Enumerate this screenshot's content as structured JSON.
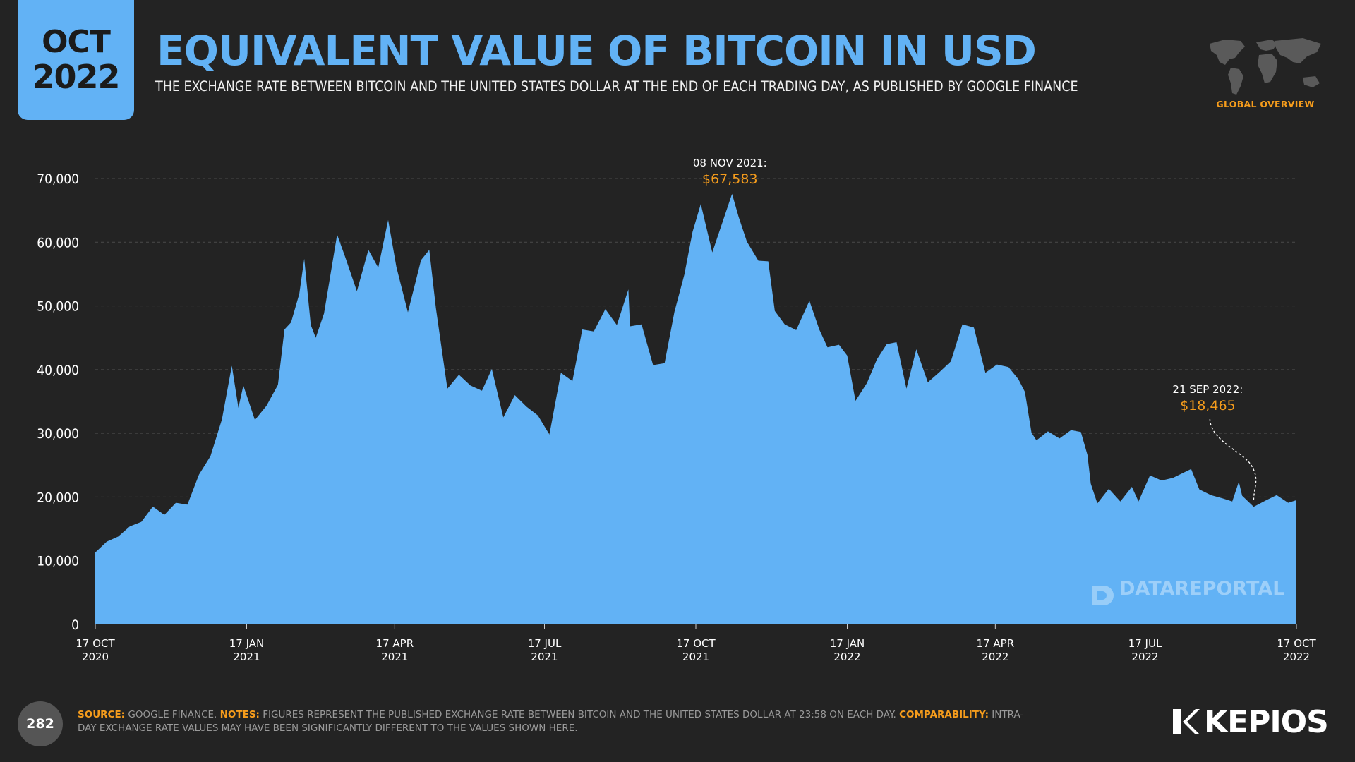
{
  "badge": {
    "month": "OCT",
    "year": "2022"
  },
  "header": {
    "title": "EQUIVALENT VALUE OF BITCOIN IN USD",
    "subtitle": "THE EXCHANGE RATE BETWEEN BITCOIN AND THE UNITED STATES DOLLAR AT THE END OF EACH TRADING DAY, AS PUBLISHED BY GOOGLE FINANCE"
  },
  "globe": {
    "icon": "world-map-icon",
    "label": "GLOBAL OVERVIEW"
  },
  "colors": {
    "area": "#62b2f5",
    "accent": "#f59c1c",
    "background": "#232323"
  },
  "chart_data": {
    "type": "area",
    "y_ticks": [
      "0",
      "10,000",
      "20,000",
      "30,000",
      "40,000",
      "50,000",
      "60,000",
      "70,000"
    ],
    "ylim": [
      0,
      70000
    ],
    "x_ticks": [
      {
        "date": "2020-10-17",
        "line1": "17 OCT",
        "line2": "2020"
      },
      {
        "date": "2021-01-17",
        "line1": "17 JAN",
        "line2": "2021"
      },
      {
        "date": "2021-04-17",
        "line1": "17 APR",
        "line2": "2021"
      },
      {
        "date": "2021-07-17",
        "line1": "17 JUL",
        "line2": "2021"
      },
      {
        "date": "2021-10-17",
        "line1": "17 OCT",
        "line2": "2021"
      },
      {
        "date": "2022-01-17",
        "line1": "17 JAN",
        "line2": "2022"
      },
      {
        "date": "2022-04-17",
        "line1": "17 APR",
        "line2": "2022"
      },
      {
        "date": "2022-07-17",
        "line1": "17 JUL",
        "line2": "2022"
      },
      {
        "date": "2022-10-17",
        "line1": "17 OCT",
        "line2": "2022"
      }
    ],
    "xlim": [
      "2020-10-17",
      "2022-10-17"
    ],
    "grid": true,
    "series": [
      {
        "points": [
          [
            "2020-10-17",
            11300
          ],
          [
            "2020-10-24",
            13000
          ],
          [
            "2020-10-31",
            13800
          ],
          [
            "2020-11-07",
            15400
          ],
          [
            "2020-11-14",
            16100
          ],
          [
            "2020-11-21",
            18500
          ],
          [
            "2020-11-28",
            17200
          ],
          [
            "2020-12-05",
            19100
          ],
          [
            "2020-12-12",
            18800
          ],
          [
            "2020-12-19",
            23500
          ],
          [
            "2020-12-26",
            26400
          ],
          [
            "2021-01-02",
            32200
          ],
          [
            "2021-01-08",
            40600
          ],
          [
            "2021-01-12",
            34000
          ],
          [
            "2021-01-15",
            37500
          ],
          [
            "2021-01-22",
            32100
          ],
          [
            "2021-01-29",
            34300
          ],
          [
            "2021-02-05",
            37600
          ],
          [
            "2021-02-09",
            46300
          ],
          [
            "2021-02-13",
            47400
          ],
          [
            "2021-02-18",
            51900
          ],
          [
            "2021-02-21",
            57400
          ],
          [
            "2021-02-25",
            47000
          ],
          [
            "2021-02-28",
            45000
          ],
          [
            "2021-03-05",
            48800
          ],
          [
            "2021-03-13",
            61200
          ],
          [
            "2021-03-18",
            57600
          ],
          [
            "2021-03-25",
            52300
          ],
          [
            "2021-04-01",
            58800
          ],
          [
            "2021-04-07",
            56000
          ],
          [
            "2021-04-13",
            63500
          ],
          [
            "2021-04-18",
            56100
          ],
          [
            "2021-04-25",
            49000
          ],
          [
            "2021-05-03",
            57200
          ],
          [
            "2021-05-08",
            58800
          ],
          [
            "2021-05-12",
            49700
          ],
          [
            "2021-05-19",
            37000
          ],
          [
            "2021-05-26",
            39200
          ],
          [
            "2021-06-02",
            37500
          ],
          [
            "2021-06-09",
            36700
          ],
          [
            "2021-06-15",
            40100
          ],
          [
            "2021-06-22",
            32500
          ],
          [
            "2021-06-29",
            36000
          ],
          [
            "2021-07-06",
            34200
          ],
          [
            "2021-07-13",
            32800
          ],
          [
            "2021-07-20",
            29800
          ],
          [
            "2021-07-27",
            39500
          ],
          [
            "2021-08-03",
            38200
          ],
          [
            "2021-08-09",
            46300
          ],
          [
            "2021-08-16",
            46000
          ],
          [
            "2021-08-23",
            49500
          ],
          [
            "2021-08-30",
            47000
          ],
          [
            "2021-09-06",
            52600
          ],
          [
            "2021-09-07",
            46800
          ],
          [
            "2021-09-14",
            47100
          ],
          [
            "2021-09-21",
            40700
          ],
          [
            "2021-09-28",
            41000
          ],
          [
            "2021-10-04",
            49100
          ],
          [
            "2021-10-10",
            54900
          ],
          [
            "2021-10-15",
            61600
          ],
          [
            "2021-10-20",
            66000
          ],
          [
            "2021-10-27",
            58400
          ],
          [
            "2021-11-02",
            63000
          ],
          [
            "2021-11-08",
            67583
          ],
          [
            "2021-11-12",
            64000
          ],
          [
            "2021-11-17",
            60100
          ],
          [
            "2021-11-24",
            57100
          ],
          [
            "2021-11-30",
            57000
          ],
          [
            "2021-12-04",
            49200
          ],
          [
            "2021-12-10",
            47100
          ],
          [
            "2021-12-17",
            46200
          ],
          [
            "2021-12-25",
            50800
          ],
          [
            "2021-12-31",
            46300
          ],
          [
            "2022-01-05",
            43500
          ],
          [
            "2022-01-12",
            43900
          ],
          [
            "2022-01-17",
            42200
          ],
          [
            "2022-01-22",
            35100
          ],
          [
            "2022-01-29",
            37900
          ],
          [
            "2022-02-04",
            41600
          ],
          [
            "2022-02-10",
            44000
          ],
          [
            "2022-02-16",
            44300
          ],
          [
            "2022-02-22",
            37000
          ],
          [
            "2022-02-28",
            43200
          ],
          [
            "2022-03-07",
            38000
          ],
          [
            "2022-03-14",
            39600
          ],
          [
            "2022-03-21",
            41300
          ],
          [
            "2022-03-28",
            47100
          ],
          [
            "2022-04-04",
            46600
          ],
          [
            "2022-04-11",
            39500
          ],
          [
            "2022-04-18",
            40800
          ],
          [
            "2022-04-25",
            40400
          ],
          [
            "2022-05-01",
            38500
          ],
          [
            "2022-05-05",
            36500
          ],
          [
            "2022-05-09",
            30100
          ],
          [
            "2022-05-12",
            28900
          ],
          [
            "2022-05-19",
            30300
          ],
          [
            "2022-05-26",
            29200
          ],
          [
            "2022-06-02",
            30500
          ],
          [
            "2022-06-08",
            30200
          ],
          [
            "2022-06-12",
            26600
          ],
          [
            "2022-06-14",
            22100
          ],
          [
            "2022-06-18",
            19000
          ],
          [
            "2022-06-25",
            21300
          ],
          [
            "2022-07-02",
            19300
          ],
          [
            "2022-07-09",
            21600
          ],
          [
            "2022-07-13",
            19300
          ],
          [
            "2022-07-20",
            23400
          ],
          [
            "2022-07-27",
            22600
          ],
          [
            "2022-08-03",
            23000
          ],
          [
            "2022-08-10",
            23900
          ],
          [
            "2022-08-14",
            24400
          ],
          [
            "2022-08-19",
            21200
          ],
          [
            "2022-08-26",
            20300
          ],
          [
            "2022-09-02",
            19800
          ],
          [
            "2022-09-08",
            19300
          ],
          [
            "2022-09-12",
            22400
          ],
          [
            "2022-09-14",
            20200
          ],
          [
            "2022-09-21",
            18465
          ],
          [
            "2022-09-28",
            19400
          ],
          [
            "2022-10-05",
            20300
          ],
          [
            "2022-10-12",
            19100
          ],
          [
            "2022-10-17",
            19500
          ]
        ]
      }
    ],
    "annotations": [
      {
        "date": "2021-11-08",
        "value": 67583,
        "label": "08 NOV 2021:",
        "value_text": "$67,583"
      },
      {
        "date": "2022-09-21",
        "value": 18465,
        "label": "21 SEP 2022:",
        "value_text": "$18,465"
      }
    ],
    "watermark": "DATAREPORTAL"
  },
  "footer": {
    "page_number": "282",
    "source_key": "SOURCE:",
    "source_text": " GOOGLE FINANCE. ",
    "notes_key": "NOTES:",
    "notes_text": " FIGURES REPRESENT THE PUBLISHED EXCHANGE RATE BETWEEN BITCOIN AND THE UNITED STATES DOLLAR AT 23:58 ON EACH DAY. ",
    "comp_key": "COMPARABILITY:",
    "comp_text": " INTRA-DAY EXCHANGE RATE VALUES MAY HAVE BEEN SIGNIFICANTLY DIFFERENT TO THE VALUES SHOWN HERE.",
    "brand": "KEPIOS"
  }
}
